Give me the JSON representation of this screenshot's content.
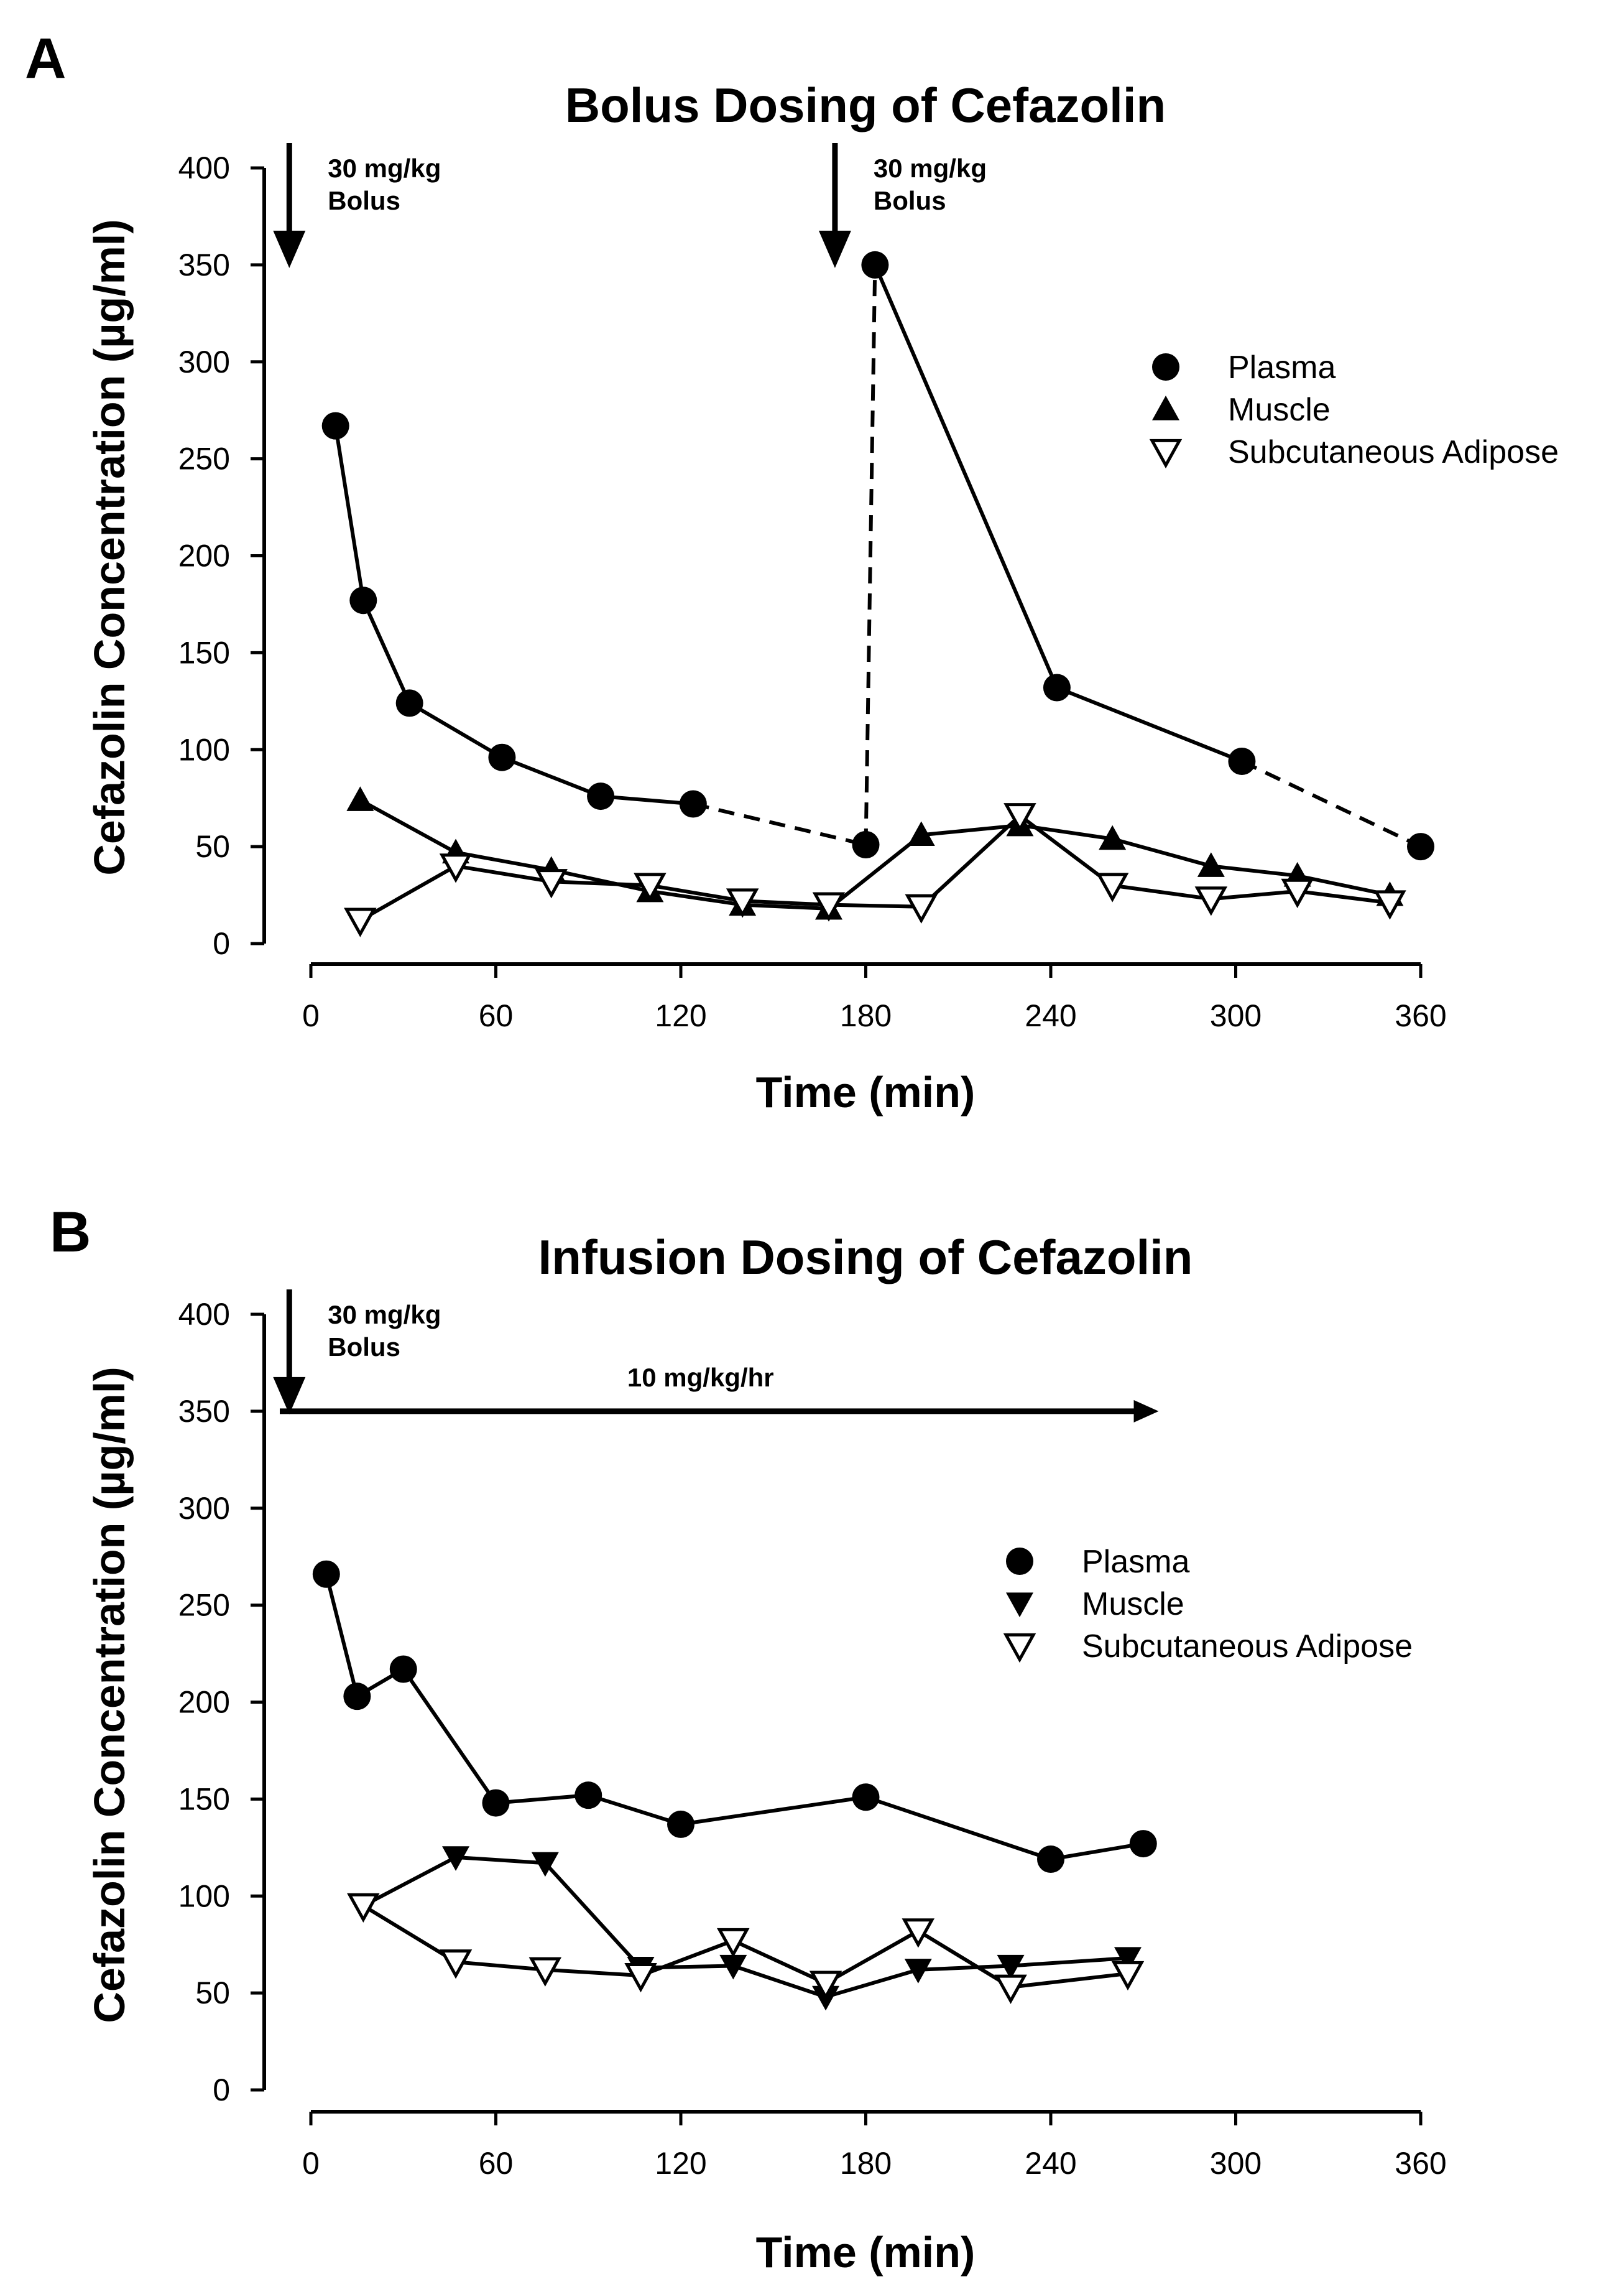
{
  "chart_data": [
    {
      "panel_label": "A",
      "type": "line",
      "title": "Bolus Dosing of Cefazolin",
      "xlabel": "Time (min)",
      "ylabel": "Cefazolin Concentration (µg/ml)",
      "xlim": [
        0,
        360
      ],
      "ylim": [
        0,
        400
      ],
      "xticks": [
        0,
        60,
        120,
        180,
        240,
        300,
        360
      ],
      "yticks": [
        0,
        50,
        100,
        150,
        200,
        250,
        300,
        350,
        400
      ],
      "legend_position": "right",
      "series": [
        {
          "name": "Plasma",
          "marker": "circle",
          "x": [
            8,
            17,
            32,
            62,
            94,
            124,
            180,
            183,
            242,
            302,
            360
          ],
          "y": [
            267,
            177,
            124,
            96,
            76,
            72,
            51,
            350,
            132,
            94,
            50
          ],
          "dashed_segments": [
            [
              5,
              6
            ],
            [
              6,
              7
            ],
            [
              9,
              10
            ]
          ]
        },
        {
          "name": "Muscle",
          "marker": "triangle-up",
          "x": [
            16,
            47,
            78,
            110,
            140,
            168,
            198,
            230,
            260,
            292,
            320,
            350
          ],
          "y": [
            74,
            47,
            38,
            27,
            20,
            18,
            56,
            61,
            54,
            40,
            35,
            25
          ],
          "dashed_segments": []
        },
        {
          "name": "Subcutaneous Adipose",
          "marker": "triangle-down-open",
          "x": [
            16,
            47,
            78,
            110,
            140,
            168,
            198,
            230,
            260,
            292,
            320,
            350
          ],
          "y": [
            12,
            40,
            32,
            30,
            22,
            20,
            19,
            66,
            30,
            23,
            27,
            21
          ],
          "dashed_segments": []
        }
      ],
      "annotations": [
        {
          "kind": "arrow",
          "x": -7,
          "line1": "30 mg/kg",
          "line2": "Bolus"
        },
        {
          "kind": "arrow",
          "x": 170,
          "line1": "30 mg/kg",
          "line2": "Bolus"
        }
      ]
    },
    {
      "panel_label": "B",
      "type": "line",
      "title": "Infusion Dosing of Cefazolin",
      "xlabel": "Time (min)",
      "ylabel": "Cefazolin Concentration (µg/ml)",
      "xlim": [
        0,
        360
      ],
      "ylim": [
        0,
        400
      ],
      "xticks": [
        0,
        60,
        120,
        180,
        240,
        300,
        360
      ],
      "yticks": [
        0,
        50,
        100,
        150,
        200,
        250,
        300,
        350,
        400
      ],
      "legend_position": "right",
      "series": [
        {
          "name": "Plasma",
          "marker": "circle",
          "x": [
            5,
            15,
            30,
            60,
            90,
            120,
            180,
            240,
            270
          ],
          "y": [
            266,
            203,
            217,
            148,
            152,
            137,
            151,
            119,
            127
          ],
          "dashed_segments": []
        },
        {
          "name": "Muscle",
          "marker": "triangle-down",
          "x": [
            17,
            47,
            76,
            107,
            137,
            167,
            197,
            227,
            265
          ],
          "y": [
            95,
            120,
            117,
            63,
            64,
            48,
            62,
            64,
            68
          ],
          "dashed_segments": []
        },
        {
          "name": "Subcutaneous Adipose",
          "marker": "triangle-down-open",
          "x": [
            17,
            47,
            76,
            107,
            137,
            167,
            197,
            227,
            265
          ],
          "y": [
            95,
            66,
            62,
            59,
            77,
            55,
            82,
            53,
            60
          ],
          "dashed_segments": []
        }
      ],
      "annotations": [
        {
          "kind": "arrow",
          "x": -7,
          "line1": "30 mg/kg",
          "line2": "Bolus"
        },
        {
          "kind": "infusion",
          "x_start": 0,
          "x_end": 275,
          "y": 350,
          "label": "10 mg/kg/hr"
        }
      ]
    }
  ]
}
